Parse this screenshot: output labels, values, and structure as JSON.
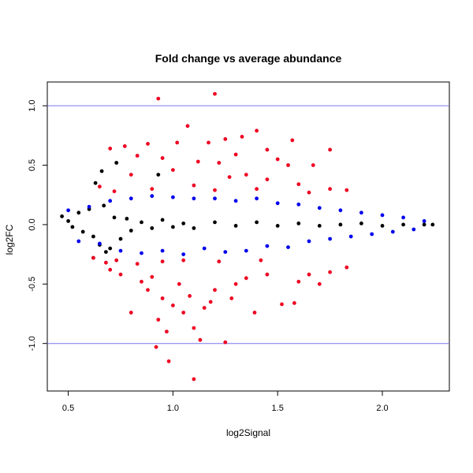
{
  "chart_data": {
    "type": "scatter",
    "title": "Fold change vs average abundance",
    "xlabel": "log2Signal",
    "ylabel": "log2FC",
    "xlim": [
      0.4,
      2.32
    ],
    "ylim": [
      -1.4,
      1.2
    ],
    "x_ticks": [
      "0.5",
      "1.0",
      "1.5",
      "2.0"
    ],
    "y_ticks": [
      "-1.0",
      "-0.5",
      "0.0",
      "0.5",
      "1.0"
    ],
    "grid": false,
    "legend": "none",
    "reference_lines": [
      {
        "y": 1.0,
        "color": "#7777ee"
      },
      {
        "y": -1.0,
        "color": "#7777ee"
      }
    ],
    "series": [
      {
        "color": "#000000",
        "description_points": "dense band centered on 0, |log2FC| < ~0.1 over most of the range, wider at low signal",
        "points": [
          [
            0.47,
            0.07
          ],
          [
            0.5,
            0.03
          ],
          [
            0.52,
            -0.02
          ],
          [
            0.55,
            0.1
          ],
          [
            0.57,
            -0.06
          ],
          [
            0.6,
            0.13
          ],
          [
            0.62,
            -0.1
          ],
          [
            0.63,
            0.35
          ],
          [
            0.65,
            -0.17
          ],
          [
            0.67,
            0.16
          ],
          [
            0.7,
            -0.2
          ],
          [
            0.72,
            0.06
          ],
          [
            0.75,
            -0.12
          ],
          [
            0.78,
            0.05
          ],
          [
            0.8,
            -0.05
          ],
          [
            0.85,
            0.02
          ],
          [
            0.9,
            -0.03
          ],
          [
            0.95,
            0.04
          ],
          [
            1.0,
            -0.02
          ],
          [
            1.05,
            0.01
          ],
          [
            1.1,
            -0.03
          ],
          [
            1.2,
            0.02
          ],
          [
            1.3,
            -0.01
          ],
          [
            1.4,
            0.02
          ],
          [
            1.5,
            -0.01
          ],
          [
            1.6,
            0.01
          ],
          [
            1.7,
            -0.01
          ],
          [
            1.8,
            0.0
          ],
          [
            1.9,
            0.01
          ],
          [
            2.0,
            -0.01
          ],
          [
            2.1,
            0.0
          ],
          [
            2.2,
            0.0
          ],
          [
            2.24,
            0.0
          ],
          [
            0.73,
            0.52
          ],
          [
            0.66,
            0.45
          ],
          [
            0.93,
            0.42
          ],
          [
            0.62,
            -0.28
          ],
          [
            0.68,
            -0.23
          ]
        ]
      },
      {
        "color": "#0000ee",
        "description_points": "blue band, |log2FC| roughly up to 0.25, tapering toward high signal",
        "points": [
          [
            0.5,
            0.12
          ],
          [
            0.55,
            -0.14
          ],
          [
            0.6,
            0.15
          ],
          [
            0.65,
            -0.16
          ],
          [
            0.7,
            0.2
          ],
          [
            0.75,
            -0.22
          ],
          [
            0.8,
            0.22
          ],
          [
            0.85,
            -0.24
          ],
          [
            0.9,
            0.24
          ],
          [
            0.95,
            -0.22
          ],
          [
            1.0,
            0.23
          ],
          [
            1.05,
            -0.25
          ],
          [
            1.1,
            0.22
          ],
          [
            1.15,
            -0.2
          ],
          [
            1.2,
            0.22
          ],
          [
            1.25,
            -0.23
          ],
          [
            1.3,
            0.2
          ],
          [
            1.35,
            -0.22
          ],
          [
            1.4,
            0.22
          ],
          [
            1.45,
            -0.18
          ],
          [
            1.5,
            0.18
          ],
          [
            1.55,
            -0.19
          ],
          [
            1.6,
            0.17
          ],
          [
            1.65,
            -0.14
          ],
          [
            1.7,
            0.14
          ],
          [
            1.75,
            -0.12
          ],
          [
            1.8,
            0.12
          ],
          [
            1.85,
            -0.1
          ],
          [
            1.9,
            0.1
          ],
          [
            1.95,
            -0.08
          ],
          [
            2.0,
            0.08
          ],
          [
            2.05,
            -0.06
          ],
          [
            2.1,
            0.06
          ],
          [
            2.15,
            -0.04
          ],
          [
            2.2,
            0.03
          ]
        ]
      },
      {
        "color": "#ee0022",
        "description_points": "outliers in red",
        "points": [
          [
            0.93,
            1.06
          ],
          [
            1.2,
            1.1
          ],
          [
            1.07,
            0.83
          ],
          [
            1.4,
            0.79
          ],
          [
            1.33,
            0.74
          ],
          [
            1.25,
            0.72
          ],
          [
            1.17,
            0.69
          ],
          [
            0.88,
            0.68
          ],
          [
            1.02,
            0.69
          ],
          [
            0.7,
            0.64
          ],
          [
            1.57,
            0.71
          ],
          [
            1.45,
            0.63
          ],
          [
            1.75,
            0.63
          ],
          [
            0.77,
            0.66
          ],
          [
            0.83,
            0.58
          ],
          [
            1.3,
            0.59
          ],
          [
            0.95,
            0.56
          ],
          [
            1.5,
            0.55
          ],
          [
            1.67,
            0.5
          ],
          [
            1.55,
            0.5
          ],
          [
            1.12,
            0.53
          ],
          [
            1.22,
            0.52
          ],
          [
            0.65,
            0.32
          ],
          [
            0.8,
            0.42
          ],
          [
            1.0,
            0.46
          ],
          [
            1.35,
            0.42
          ],
          [
            1.27,
            0.4
          ],
          [
            1.45,
            0.38
          ],
          [
            1.6,
            0.34
          ],
          [
            1.75,
            0.3
          ],
          [
            1.83,
            0.29
          ],
          [
            0.72,
            0.28
          ],
          [
            0.9,
            0.3
          ],
          [
            1.1,
            0.33
          ],
          [
            1.2,
            0.29
          ],
          [
            1.4,
            0.3
          ],
          [
            1.65,
            0.27
          ],
          [
            0.62,
            -0.28
          ],
          [
            0.7,
            -0.38
          ],
          [
            0.75,
            -0.42
          ],
          [
            0.8,
            -0.74
          ],
          [
            0.85,
            -0.48
          ],
          [
            0.88,
            -0.55
          ],
          [
            0.9,
            -0.44
          ],
          [
            0.92,
            -1.03
          ],
          [
            0.93,
            -0.8
          ],
          [
            0.95,
            -0.62
          ],
          [
            0.97,
            -0.9
          ],
          [
            0.98,
            -1.15
          ],
          [
            1.0,
            -0.68
          ],
          [
            1.03,
            -0.5
          ],
          [
            1.05,
            -0.74
          ],
          [
            1.08,
            -0.6
          ],
          [
            1.1,
            -0.87
          ],
          [
            1.1,
            -1.3
          ],
          [
            1.13,
            -0.97
          ],
          [
            1.15,
            -0.7
          ],
          [
            1.18,
            -0.65
          ],
          [
            1.2,
            -0.55
          ],
          [
            1.25,
            -0.99
          ],
          [
            1.28,
            -0.62
          ],
          [
            1.3,
            -0.5
          ],
          [
            1.35,
            -0.45
          ],
          [
            1.39,
            -0.74
          ],
          [
            1.45,
            -0.42
          ],
          [
            1.52,
            -0.67
          ],
          [
            1.58,
            -0.66
          ],
          [
            1.6,
            -0.48
          ],
          [
            1.65,
            -0.42
          ],
          [
            1.7,
            -0.5
          ],
          [
            1.75,
            -0.4
          ],
          [
            1.83,
            -0.36
          ],
          [
            0.68,
            -0.32
          ],
          [
            0.73,
            -0.3
          ],
          [
            0.83,
            -0.33
          ],
          [
            0.95,
            -0.31
          ],
          [
            1.05,
            -0.3
          ],
          [
            1.22,
            -0.31
          ],
          [
            1.42,
            -0.3
          ]
        ]
      }
    ]
  }
}
